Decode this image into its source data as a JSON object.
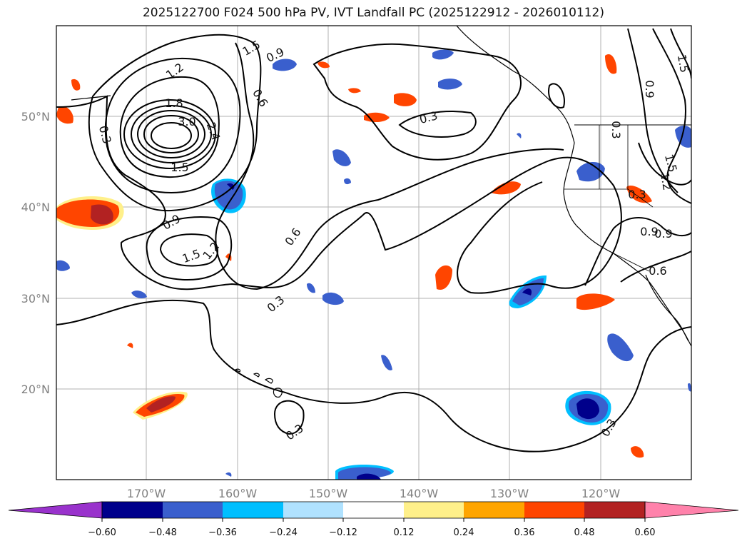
{
  "title": "2025122700 F024 500 hPa PV, IVT Landfall PC (2025122912 - 2026010112)",
  "map": {
    "lat_labels": [
      "50°N",
      "40°N",
      "30°N",
      "20°N"
    ],
    "lon_labels": [
      "170°W",
      "160°W",
      "150°W",
      "140°W",
      "130°W",
      "120°W"
    ],
    "contour_labels": [
      "1.5",
      "0.9",
      "1.2",
      "1.8",
      "3.0",
      "2.4",
      "1.5",
      "0.6",
      "0.3",
      "0.9",
      "1.5",
      "1.2",
      "0.6",
      "0.3",
      "0.3",
      "0.9",
      "0.3",
      "0.9",
      "1.5",
      "1.2",
      "0.3",
      "0.9",
      "0.6",
      "0.3",
      "1.5"
    ],
    "colors": {
      "land_line": "#000000",
      "grid": "#b0b0b0"
    }
  },
  "colorbar": {
    "tick_labels": [
      "−0.60",
      "−0.48",
      "−0.36",
      "−0.24",
      "−0.12",
      "0.12",
      "0.24",
      "0.36",
      "0.48",
      "0.60"
    ],
    "colors": [
      "#9932cc",
      "#00008b",
      "#3a5fcd",
      "#00bfff",
      "#b0e2ff",
      "#ffffff",
      "#fff08a",
      "#ffa500",
      "#ff4500",
      "#b22222",
      "#ff82ab"
    ]
  }
}
